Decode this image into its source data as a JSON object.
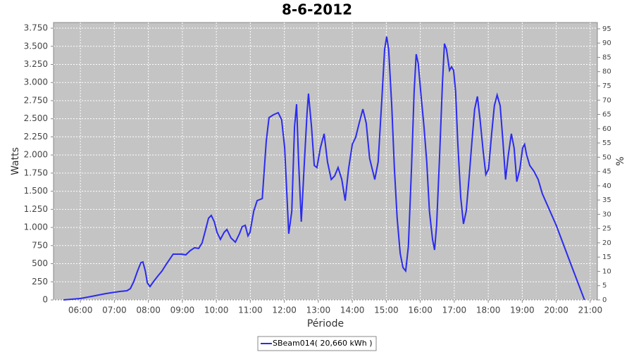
{
  "chart_data": {
    "type": "line",
    "title": "8-6-2012",
    "x_label": "Période",
    "y_label": "Watts",
    "y2_label": "%",
    "x": [
      5.5,
      6.0,
      6.33,
      6.75,
      7.16,
      7.37,
      7.47,
      7.57,
      7.68,
      7.78,
      7.84,
      7.91,
      7.97,
      8.05,
      8.15,
      8.28,
      8.4,
      8.53,
      8.63,
      8.73,
      8.86,
      8.98,
      9.1,
      9.23,
      9.36,
      9.48,
      9.58,
      9.69,
      9.77,
      9.85,
      9.94,
      10.02,
      10.12,
      10.23,
      10.31,
      10.43,
      10.56,
      10.68,
      10.76,
      10.85,
      10.93,
      10.99,
      11.1,
      11.2,
      11.35,
      11.47,
      11.55,
      11.68,
      11.82,
      11.92,
      12.01,
      12.13,
      12.22,
      12.3,
      12.36,
      12.42,
      12.5,
      12.59,
      12.67,
      12.71,
      12.8,
      12.88,
      12.96,
      13.06,
      13.17,
      13.27,
      13.38,
      13.48,
      13.58,
      13.69,
      13.79,
      13.89,
      14.0,
      14.1,
      14.2,
      14.31,
      14.41,
      14.51,
      14.66,
      14.76,
      14.87,
      14.95,
      15.01,
      15.07,
      15.16,
      15.24,
      15.32,
      15.41,
      15.49,
      15.57,
      15.65,
      15.74,
      15.82,
      15.88,
      15.94,
      16.03,
      16.11,
      16.19,
      16.27,
      16.36,
      16.42,
      16.48,
      16.57,
      16.65,
      16.71,
      16.77,
      16.86,
      16.92,
      16.98,
      17.04,
      17.1,
      17.19,
      17.27,
      17.35,
      17.44,
      17.52,
      17.6,
      17.68,
      17.76,
      17.85,
      17.93,
      18.01,
      18.1,
      18.18,
      18.26,
      18.35,
      18.43,
      18.51,
      18.59,
      18.68,
      18.76,
      18.84,
      18.93,
      19.01,
      19.07,
      19.13,
      19.22,
      19.34,
      19.47,
      19.59,
      20.0,
      20.42,
      20.83
    ],
    "series": [
      {
        "name": "SBeam014( 20,660 kWh )",
        "color": "#2b2bf0",
        "values": [
          0,
          19,
          49,
          87,
          117,
          126,
          155,
          253,
          398,
          515,
          525,
          398,
          233,
          185,
          253,
          330,
          398,
          495,
          563,
          632,
          632,
          632,
          622,
          680,
          720,
          710,
          787,
          981,
          1127,
          1166,
          1078,
          933,
          836,
          933,
          972,
          855,
          797,
          913,
          1010,
          1030,
          884,
          933,
          1224,
          1370,
          1399,
          2195,
          2516,
          2555,
          2584,
          2487,
          2098,
          913,
          1224,
          2390,
          2701,
          1904,
          1078,
          1904,
          2584,
          2847,
          2390,
          1856,
          1827,
          2098,
          2293,
          1904,
          1661,
          1710,
          1827,
          1661,
          1370,
          1807,
          2147,
          2244,
          2438,
          2633,
          2438,
          1953,
          1661,
          1904,
          2779,
          3459,
          3634,
          3459,
          2681,
          1807,
          1127,
          641,
          447,
          399,
          739,
          1807,
          2876,
          3391,
          3264,
          2779,
          2390,
          1904,
          1224,
          836,
          690,
          1030,
          2001,
          2973,
          3537,
          3459,
          3167,
          3216,
          3167,
          2876,
          2195,
          1418,
          1049,
          1224,
          1710,
          2195,
          2633,
          2808,
          2487,
          2050,
          1729,
          1807,
          2293,
          2681,
          2827,
          2681,
          2195,
          1661,
          2001,
          2293,
          2098,
          1632,
          1807,
          2098,
          2147,
          2001,
          1856,
          1778,
          1661,
          1467,
          1030,
          505,
          0
        ]
      }
    ],
    "xlim": [
      5.21,
      21.21
    ],
    "xticks": [
      {
        "value": 6,
        "label": "06:00"
      },
      {
        "value": 7,
        "label": "07:00"
      },
      {
        "value": 8,
        "label": "08:00"
      },
      {
        "value": 9,
        "label": "09:00"
      },
      {
        "value": 10,
        "label": "10:00"
      },
      {
        "value": 11,
        "label": "11:00"
      },
      {
        "value": 12,
        "label": "12:00"
      },
      {
        "value": 13,
        "label": "13:00"
      },
      {
        "value": 14,
        "label": "14:00"
      },
      {
        "value": 15,
        "label": "15:00"
      },
      {
        "value": 16,
        "label": "16:00"
      },
      {
        "value": 17,
        "label": "17:00"
      },
      {
        "value": 18,
        "label": "18:00"
      },
      {
        "value": 19,
        "label": "19:00"
      },
      {
        "value": 20,
        "label": "20:00"
      },
      {
        "value": 21,
        "label": "21:00"
      }
    ],
    "ylim": [
      0,
      3828
    ],
    "yticks": [
      0,
      250,
      500,
      750,
      {
        "value": 1000,
        "label": "1.000"
      },
      {
        "value": 1250,
        "label": "1.250"
      },
      {
        "value": 1500,
        "label": "1.500"
      },
      {
        "value": 1750,
        "label": "1.750"
      },
      {
        "value": 2000,
        "label": "2.000"
      },
      {
        "value": 2250,
        "label": "2.250"
      },
      {
        "value": 2500,
        "label": "2.500"
      },
      {
        "value": 2750,
        "label": "2.750"
      },
      {
        "value": 3000,
        "label": "3.000"
      },
      {
        "value": 3250,
        "label": "3.250"
      },
      {
        "value": 3500,
        "label": "3.500"
      },
      {
        "value": 3750,
        "label": "3.750"
      }
    ],
    "y2lim": [
      0,
      97.2
    ],
    "y2ticks": [
      0,
      5,
      10,
      15,
      20,
      25,
      30,
      35,
      40,
      45,
      50,
      55,
      60,
      65,
      70,
      75,
      80,
      85,
      90,
      95
    ],
    "grid": true
  }
}
